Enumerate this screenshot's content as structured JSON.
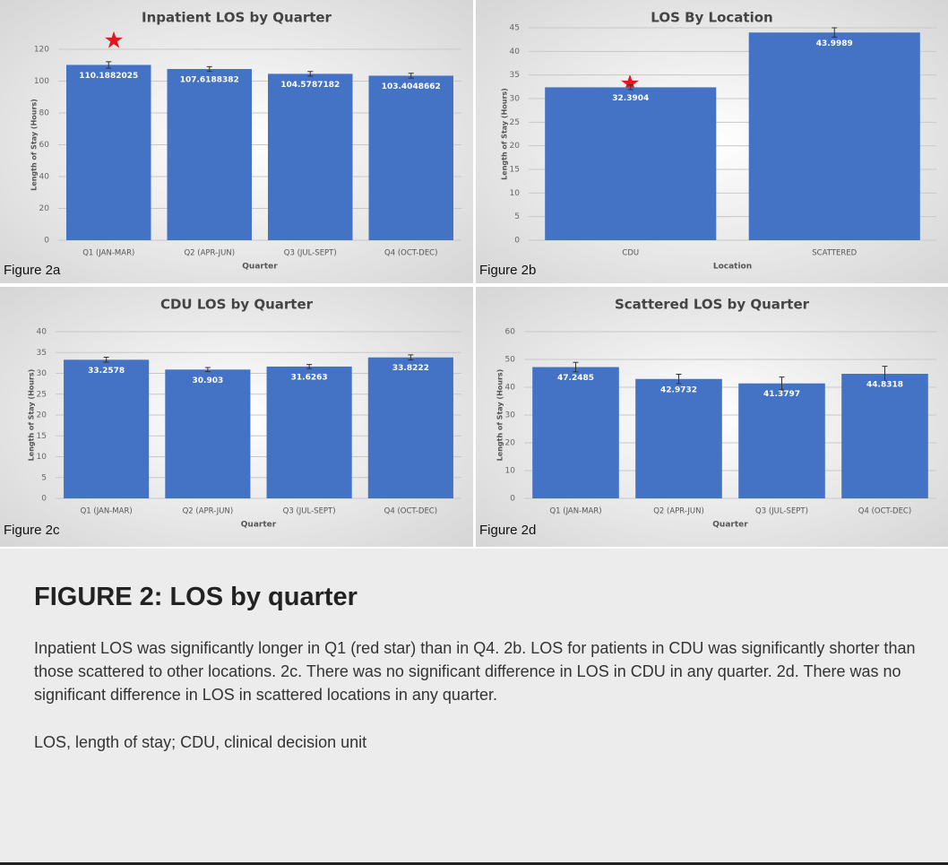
{
  "chart_data": [
    {
      "type": "bar",
      "title": "Inpatient LOS by Quarter",
      "figure_label": "Figure 2a",
      "x_label": "Quarter",
      "y_label": "Length of Stay (Hours)",
      "categories": [
        "Q1 (JAN-MAR)",
        "Q2 (APR-JUN)",
        "Q3 (JUL-SEPT)",
        "Q4 (OCT-DEC)"
      ],
      "values": [
        110.1882025,
        107.6188382,
        104.5787182,
        103.4048662
      ],
      "errors": [
        2,
        1.5,
        1.5,
        1.5
      ],
      "color": "#4472c4",
      "ylim": [
        0,
        120
      ],
      "yticks": [
        0,
        20,
        40,
        60,
        80,
        100,
        120
      ],
      "grid": true
    },
    {
      "type": "bar",
      "title": "LOS By Location",
      "figure_label": "Figure 2b",
      "x_label": "Location",
      "y_label": "Length of Stay (Hours)",
      "categories": [
        "CDU",
        "SCATTERED"
      ],
      "values": [
        32.3904,
        43.9989
      ],
      "errors": [
        0.5,
        1
      ],
      "color": "#4472c4",
      "ylim": [
        0,
        45
      ],
      "yticks": [
        0,
        5,
        10,
        15,
        20,
        25,
        30,
        35,
        40,
        45
      ],
      "grid": true
    },
    {
      "type": "bar",
      "title": "CDU LOS by Quarter",
      "figure_label": "Figure 2c",
      "x_label": "Quarter",
      "y_label": "Length of Stay (Hours)",
      "categories": [
        "Q1 (JAN-MAR)",
        "Q2 (APR-JUN)",
        "Q3 (JUL-SEPT)",
        "Q4 (OCT-DEC)"
      ],
      "values": [
        33.2578,
        30.903,
        31.6263,
        33.8222
      ],
      "errors": [
        0.6,
        0.5,
        0.5,
        0.6
      ],
      "color": "#4472c4",
      "ylim": [
        0,
        40
      ],
      "yticks": [
        0,
        5,
        10,
        15,
        20,
        25,
        30,
        35,
        40
      ],
      "grid": true
    },
    {
      "type": "bar",
      "title": "Scattered LOS by Quarter",
      "figure_label": "Figure 2d",
      "x_label": "Quarter",
      "y_label": "Length of Stay (Hours)",
      "categories": [
        "Q1 (JAN-MAR)",
        "Q2 (APR-JUN)",
        "Q3 (JUL-SEPT)",
        "Q4 (OCT-DEC)"
      ],
      "values": [
        47.2485,
        42.9732,
        41.3797,
        44.8318
      ],
      "errors": [
        1.7,
        1.7,
        2.3,
        2.7
      ],
      "color": "#4472c4",
      "ylim": [
        0,
        60
      ],
      "yticks": [
        0,
        10,
        20,
        30,
        40,
        50,
        60
      ],
      "grid": true
    }
  ],
  "caption": {
    "title": "FIGURE 2: LOS by quarter",
    "text": "Inpatient LOS was significantly longer in Q1 (red star) than in Q4. 2b. LOS for patients in CDU was significantly shorter than those scattered to other locations. 2c. There was no significant difference in LOS in CDU in any quarter. 2d. There was no significant difference in LOS in scattered locations in any quarter.",
    "footnote": "LOS, length of stay; CDU, clinical decision unit"
  }
}
